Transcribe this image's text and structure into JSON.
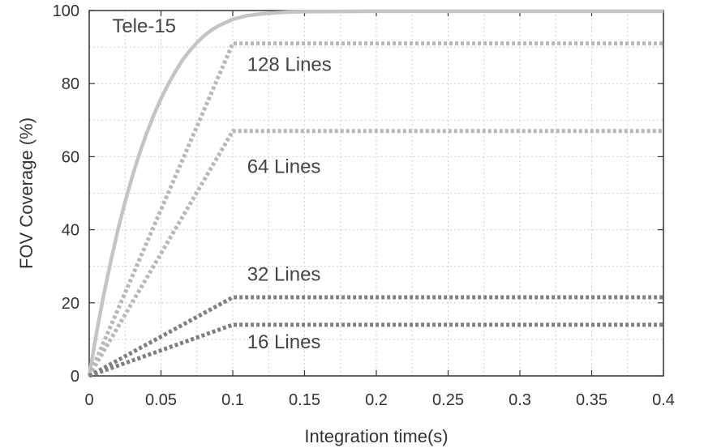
{
  "chart_data": {
    "type": "line",
    "xlabel": "Integration time(s)",
    "ylabel": "FOV Coverage (%)",
    "xlim": [
      0,
      0.4
    ],
    "ylim": [
      0,
      100
    ],
    "x_ticks": [
      0,
      0.05,
      0.1,
      0.15,
      0.2,
      0.25,
      0.3,
      0.35,
      0.4
    ],
    "x_tick_labels": [
      "0",
      "0.05",
      "0.1",
      "0.15",
      "0.2",
      "0.25",
      "0.3",
      "0.35",
      "0.4"
    ],
    "y_ticks": [
      0,
      20,
      40,
      60,
      80,
      100
    ],
    "y_tick_labels": [
      "0",
      "20",
      "40",
      "60",
      "80",
      "100"
    ],
    "grid": true,
    "series": [
      {
        "name": "Tele-15",
        "style": "solid",
        "color": "#c4c4c4",
        "x": [
          0,
          0.005,
          0.01,
          0.015,
          0.02,
          0.025,
          0.03,
          0.035,
          0.04,
          0.045,
          0.05,
          0.055,
          0.06,
          0.065,
          0.07,
          0.075,
          0.08,
          0.085,
          0.09,
          0.1,
          0.11,
          0.12,
          0.13,
          0.14,
          0.15,
          0.2,
          0.25,
          0.3,
          0.35,
          0.4
        ],
        "values": [
          0,
          11.5,
          22.0,
          31.4,
          40.0,
          47.7,
          54.6,
          60.8,
          66.4,
          71.4,
          75.9,
          79.8,
          83.3,
          86.5,
          89.0,
          91.2,
          93.1,
          94.6,
          95.8,
          97.6,
          98.6,
          99.1,
          99.4,
          99.6,
          99.7,
          99.8,
          99.8,
          99.8,
          99.8,
          99.8
        ]
      },
      {
        "name": "128 Lines",
        "style": "dotted",
        "color": "#b8b8b8",
        "x": [
          0,
          0.1,
          0.4
        ],
        "values": [
          0,
          91,
          91
        ]
      },
      {
        "name": "64 Lines",
        "style": "dotted",
        "color": "#b8b8b8",
        "x": [
          0,
          0.1,
          0.4
        ],
        "values": [
          0,
          67,
          67
        ]
      },
      {
        "name": "32 Lines",
        "style": "dotted",
        "color": "#7f7f7f",
        "x": [
          0,
          0.1,
          0.4
        ],
        "values": [
          0,
          21.5,
          21.5
        ]
      },
      {
        "name": "16 Lines",
        "style": "dotted",
        "color": "#7f7f7f",
        "x": [
          0,
          0.1,
          0.4
        ],
        "values": [
          0,
          14,
          14
        ]
      }
    ],
    "annotations": [
      {
        "series": "Tele-15",
        "x": 0.016,
        "y": 94
      },
      {
        "series": "128 Lines",
        "x": 0.11,
        "y": 83.5
      },
      {
        "series": "64 Lines",
        "x": 0.11,
        "y": 55.5
      },
      {
        "series": "32 Lines",
        "x": 0.11,
        "y": 26
      },
      {
        "series": "16 Lines",
        "x": 0.11,
        "y": 7.5
      }
    ]
  }
}
